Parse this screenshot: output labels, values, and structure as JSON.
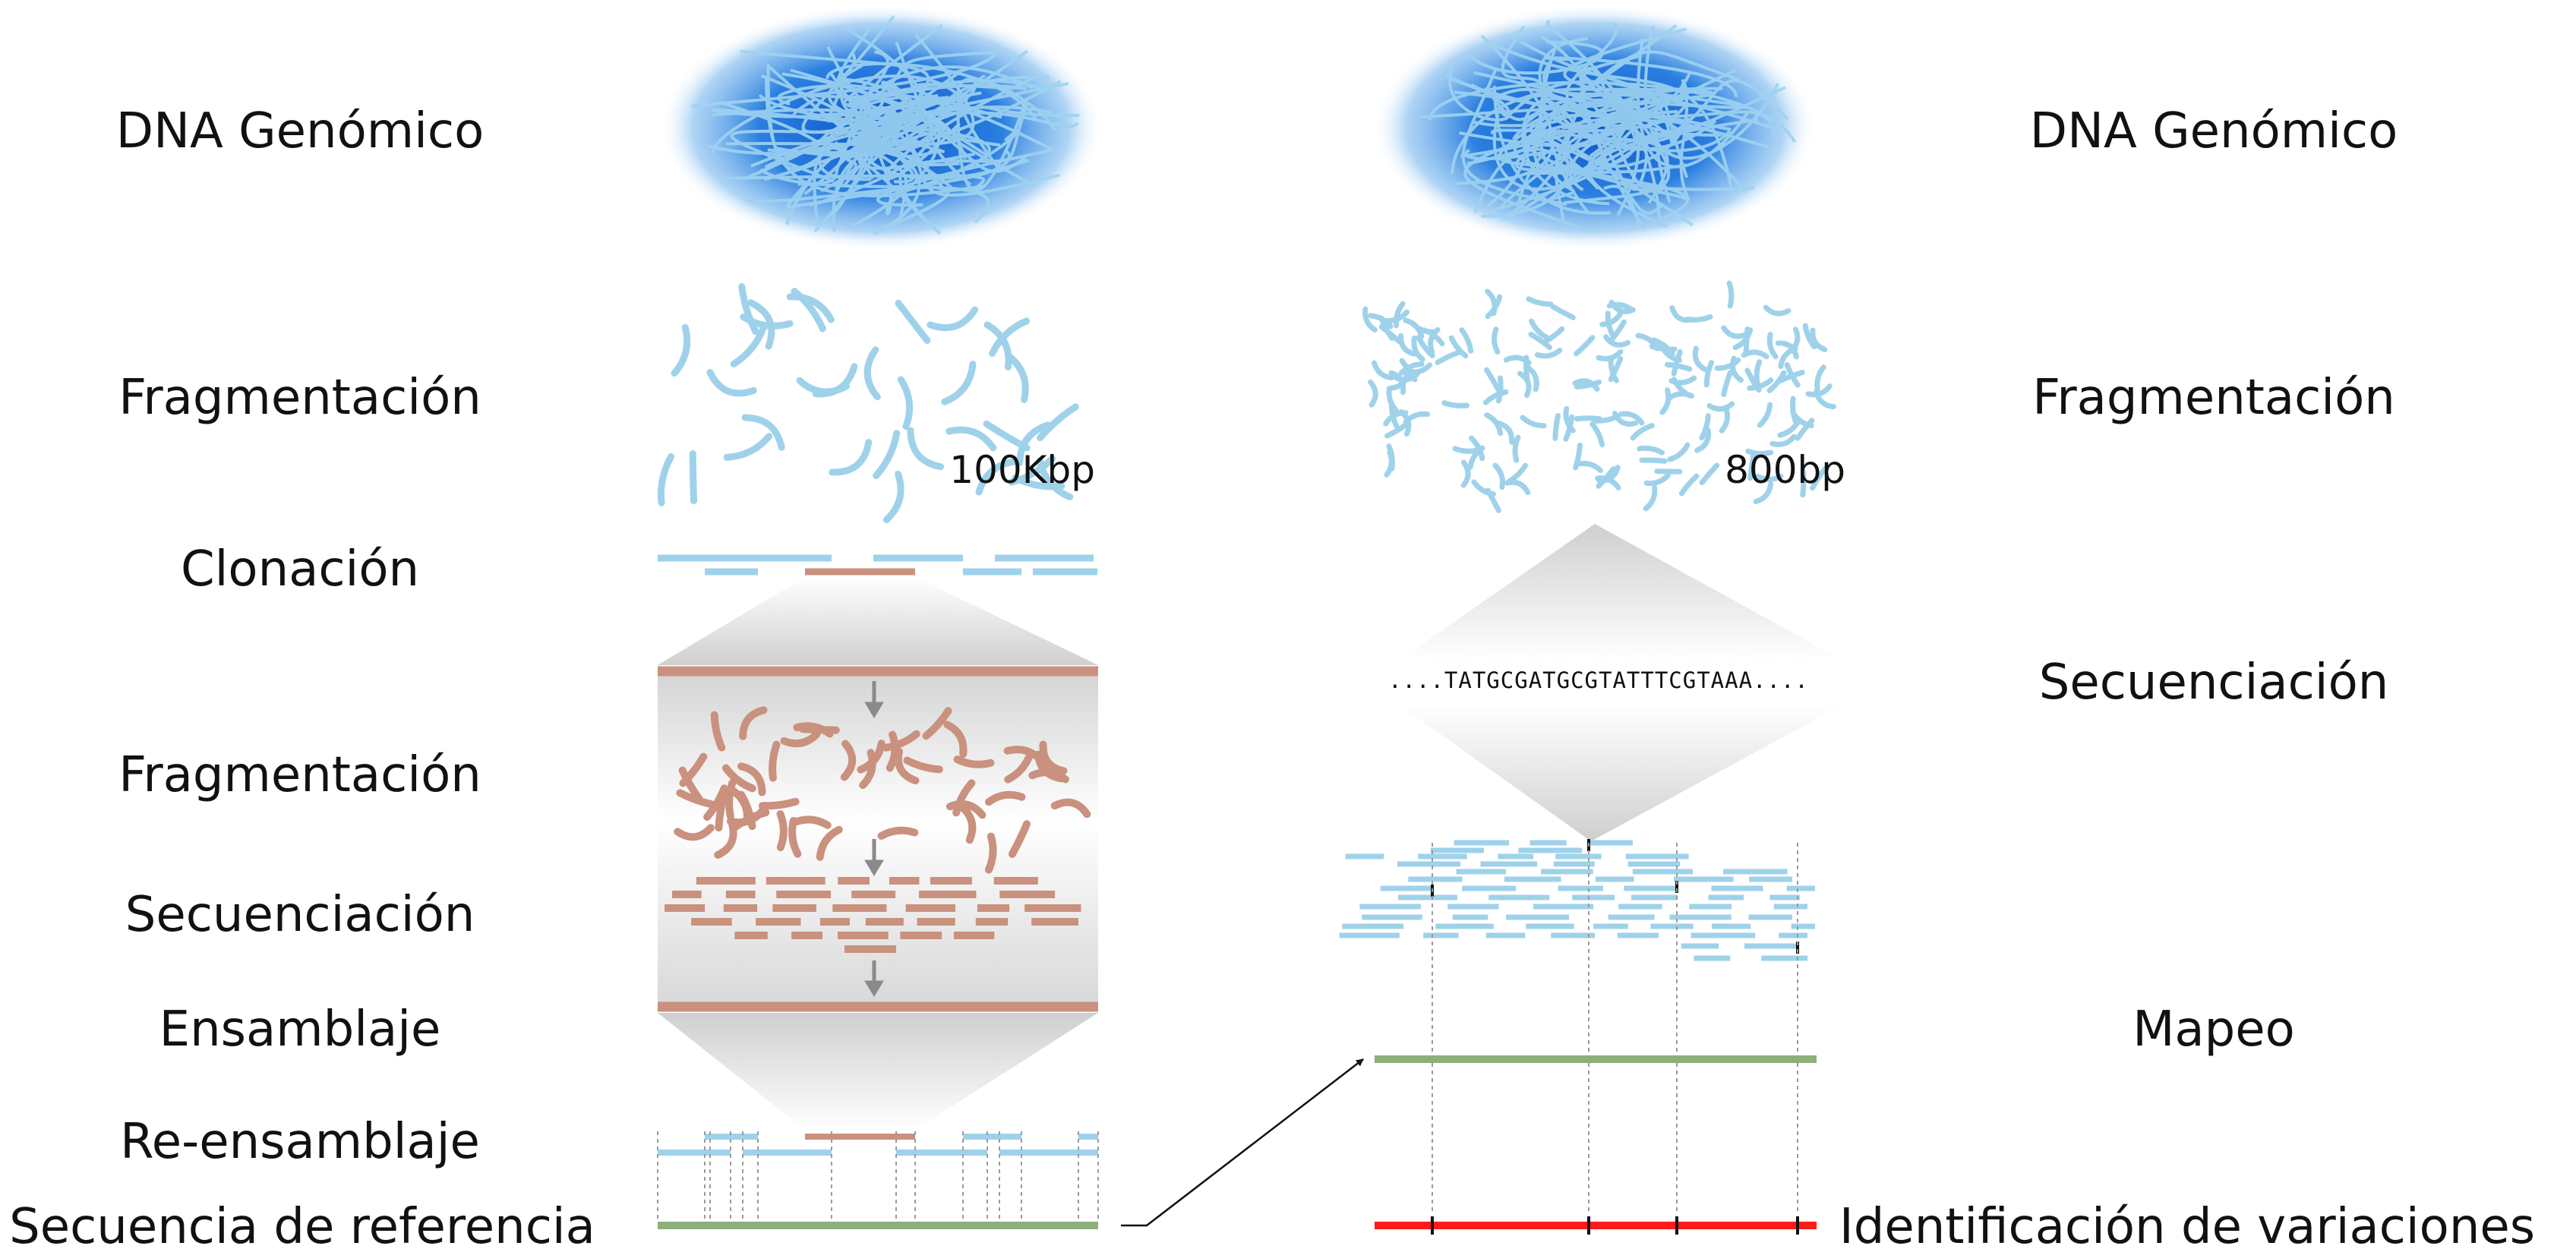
{
  "colors": {
    "dna_blue": "#1f6fd6",
    "fragment_blue": "#9fd2ea",
    "clone_brown": "#c9917e",
    "reference_green": "#8db07a",
    "variation_red": "#ff1a1a",
    "arrow_gray": "#8a8a8a"
  },
  "left": {
    "labels": {
      "genomic_dna": "DNA Genómico",
      "fragmentation": "Fragmentación",
      "cloning": "Clonación",
      "fragmentation_2": "Fragmentación",
      "sequencing": "Secuenciación",
      "assembly": "Ensamblaje",
      "reassembly": "Re-ensamblaje",
      "reference_sequence": "Secuencia de referencia"
    },
    "fragment_size": "100Kbp"
  },
  "right": {
    "labels": {
      "genomic_dna": "DNA Genómico",
      "fragmentation": "Fragmentación",
      "sequencing": "Secuenciación",
      "mapping": "Mapeo",
      "variant_identification": "Identificación de variaciones"
    },
    "fragment_size": "800bp",
    "sequence_read": "....TATGCGATGCGTATTTCGTAAA...."
  }
}
